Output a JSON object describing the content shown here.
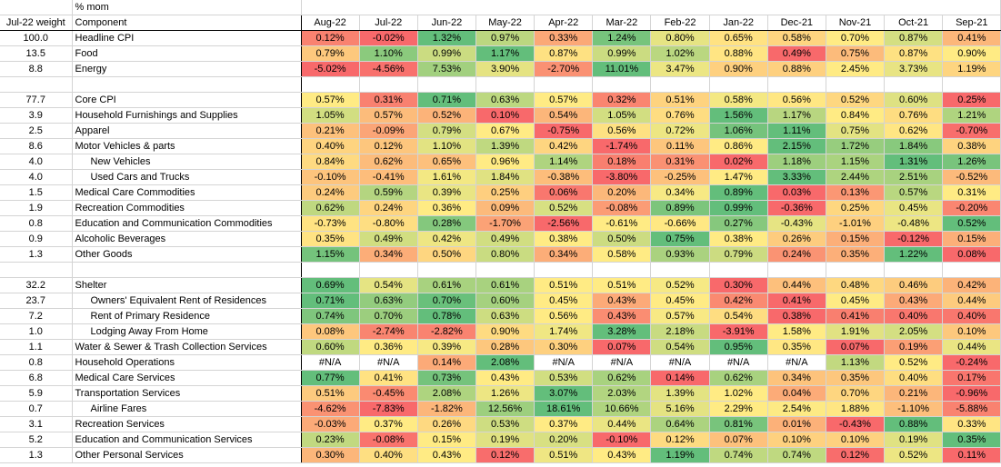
{
  "header": {
    "unit_label": "% mom",
    "weight_header": "Jul-22 weight",
    "component_header": "Component",
    "months": [
      "Aug-22",
      "Jul-22",
      "Jun-22",
      "May-22",
      "Apr-22",
      "Mar-22",
      "Feb-22",
      "Jan-22",
      "Dec-21",
      "Nov-21",
      "Oct-21",
      "Sep-21"
    ]
  },
  "rows": [
    {
      "w": "100.0",
      "c": "Headline CPI",
      "v": [
        "0.12%",
        "-0.02%",
        "1.32%",
        "0.97%",
        "0.33%",
        "1.24%",
        "0.80%",
        "0.65%",
        "0.58%",
        "0.70%",
        "0.87%",
        "0.41%"
      ]
    },
    {
      "w": "13.5",
      "c": "Food",
      "v": [
        "0.79%",
        "1.10%",
        "0.99%",
        "1.17%",
        "0.87%",
        "0.99%",
        "1.02%",
        "0.88%",
        "0.49%",
        "0.75%",
        "0.87%",
        "0.90%"
      ]
    },
    {
      "w": "8.8",
      "c": "Energy",
      "v": [
        "-5.02%",
        "-4.56%",
        "7.53%",
        "3.90%",
        "-2.70%",
        "11.01%",
        "3.47%",
        "0.90%",
        "0.88%",
        "2.45%",
        "3.73%",
        "1.19%"
      ]
    },
    {
      "blank": true
    },
    {
      "w": "77.7",
      "c": "Core CPI",
      "v": [
        "0.57%",
        "0.31%",
        "0.71%",
        "0.63%",
        "0.57%",
        "0.32%",
        "0.51%",
        "0.58%",
        "0.56%",
        "0.52%",
        "0.60%",
        "0.25%"
      ]
    },
    {
      "w": "3.9",
      "c": "Household Furnishings and Supplies",
      "v": [
        "1.05%",
        "0.57%",
        "0.52%",
        "0.10%",
        "0.54%",
        "1.05%",
        "0.76%",
        "1.56%",
        "1.17%",
        "0.84%",
        "0.76%",
        "1.21%"
      ]
    },
    {
      "w": "2.5",
      "c": "Apparel",
      "v": [
        "0.21%",
        "-0.09%",
        "0.79%",
        "0.67%",
        "-0.75%",
        "0.56%",
        "0.72%",
        "1.06%",
        "1.11%",
        "0.75%",
        "0.62%",
        "-0.70%"
      ]
    },
    {
      "w": "8.6",
      "c": "Motor Vehicles & parts",
      "v": [
        "0.40%",
        "0.12%",
        "1.10%",
        "1.39%",
        "0.42%",
        "-1.74%",
        "0.11%",
        "0.86%",
        "2.15%",
        "1.72%",
        "1.84%",
        "0.38%"
      ]
    },
    {
      "w": "4.0",
      "c": "New Vehicles",
      "indent": true,
      "v": [
        "0.84%",
        "0.62%",
        "0.65%",
        "0.96%",
        "1.14%",
        "0.18%",
        "0.31%",
        "0.02%",
        "1.18%",
        "1.15%",
        "1.31%",
        "1.26%"
      ]
    },
    {
      "w": "4.0",
      "c": "Used Cars and Trucks",
      "indent": true,
      "v": [
        "-0.10%",
        "-0.41%",
        "1.61%",
        "1.84%",
        "-0.38%",
        "-3.80%",
        "-0.25%",
        "1.47%",
        "3.33%",
        "2.44%",
        "2.51%",
        "-0.52%"
      ]
    },
    {
      "w": "1.5",
      "c": "Medical Care Commodities",
      "v": [
        "0.24%",
        "0.59%",
        "0.39%",
        "0.25%",
        "0.06%",
        "0.20%",
        "0.34%",
        "0.89%",
        "0.03%",
        "0.13%",
        "0.57%",
        "0.31%"
      ]
    },
    {
      "w": "1.9",
      "c": "Recreation Commodities",
      "v": [
        "0.62%",
        "0.24%",
        "0.36%",
        "0.09%",
        "0.52%",
        "-0.08%",
        "0.89%",
        "0.99%",
        "-0.36%",
        "0.25%",
        "0.45%",
        "-0.20%"
      ]
    },
    {
      "w": "0.8",
      "c": "Education and Communication Commodities",
      "v": [
        "-0.73%",
        "-0.80%",
        "0.28%",
        "-1.70%",
        "-2.56%",
        "-0.61%",
        "-0.66%",
        "0.27%",
        "-0.43%",
        "-1.01%",
        "-0.48%",
        "0.52%"
      ]
    },
    {
      "w": "0.9",
      "c": "Alcoholic Beverages",
      "v": [
        "0.35%",
        "0.49%",
        "0.42%",
        "0.49%",
        "0.38%",
        "0.50%",
        "0.75%",
        "0.38%",
        "0.26%",
        "0.15%",
        "-0.12%",
        "0.15%"
      ]
    },
    {
      "w": "1.3",
      "c": "Other Goods",
      "v": [
        "1.15%",
        "0.34%",
        "0.50%",
        "0.80%",
        "0.34%",
        "0.58%",
        "0.93%",
        "0.79%",
        "0.24%",
        "0.35%",
        "1.22%",
        "0.08%"
      ]
    },
    {
      "blank": true
    },
    {
      "w": "32.2",
      "c": "Shelter",
      "v": [
        "0.69%",
        "0.54%",
        "0.61%",
        "0.61%",
        "0.51%",
        "0.51%",
        "0.52%",
        "0.30%",
        "0.44%",
        "0.48%",
        "0.46%",
        "0.42%"
      ]
    },
    {
      "w": "23.7",
      "c": "Owners' Equivalent Rent of Residences",
      "indent": true,
      "v": [
        "0.71%",
        "0.63%",
        "0.70%",
        "0.60%",
        "0.45%",
        "0.43%",
        "0.45%",
        "0.42%",
        "0.41%",
        "0.45%",
        "0.43%",
        "0.44%"
      ]
    },
    {
      "w": "7.2",
      "c": "Rent of Primary Residence",
      "indent": true,
      "v": [
        "0.74%",
        "0.70%",
        "0.78%",
        "0.63%",
        "0.56%",
        "0.43%",
        "0.57%",
        "0.54%",
        "0.38%",
        "0.41%",
        "0.40%",
        "0.40%"
      ]
    },
    {
      "w": "1.0",
      "c": "Lodging Away From Home",
      "indent": true,
      "v": [
        "0.08%",
        "-2.74%",
        "-2.82%",
        "0.90%",
        "1.74%",
        "3.28%",
        "2.18%",
        "-3.91%",
        "1.58%",
        "1.91%",
        "2.05%",
        "0.10%"
      ]
    },
    {
      "w": "1.1",
      "c": "Water & Sewer & Trash Collection Services",
      "v": [
        "0.60%",
        "0.36%",
        "0.39%",
        "0.28%",
        "0.30%",
        "0.07%",
        "0.54%",
        "0.95%",
        "0.35%",
        "0.07%",
        "0.19%",
        "0.44%"
      ]
    },
    {
      "w": "0.8",
      "c": "Household Operations",
      "v": [
        "#N/A",
        "#N/A",
        "0.14%",
        "2.08%",
        "#N/A",
        "#N/A",
        "#N/A",
        "#N/A",
        "#N/A",
        "1.13%",
        "0.52%",
        "-0.24%"
      ]
    },
    {
      "w": "6.8",
      "c": "Medical Care Services",
      "v": [
        "0.77%",
        "0.41%",
        "0.73%",
        "0.43%",
        "0.53%",
        "0.62%",
        "0.14%",
        "0.62%",
        "0.34%",
        "0.35%",
        "0.40%",
        "0.17%"
      ]
    },
    {
      "w": "5.9",
      "c": "Transportation Services",
      "v": [
        "0.51%",
        "-0.45%",
        "2.08%",
        "1.26%",
        "3.07%",
        "2.03%",
        "1.39%",
        "1.02%",
        "0.04%",
        "0.70%",
        "0.21%",
        "-0.96%"
      ]
    },
    {
      "w": "0.7",
      "c": "Airline Fares",
      "indent": true,
      "v": [
        "-4.62%",
        "-7.83%",
        "-1.82%",
        "12.56%",
        "18.61%",
        "10.66%",
        "5.16%",
        "2.29%",
        "2.54%",
        "1.88%",
        "-1.10%",
        "-5.88%"
      ]
    },
    {
      "w": "3.1",
      "c": "Recreation Services",
      "v": [
        "-0.03%",
        "0.37%",
        "0.26%",
        "0.53%",
        "0.37%",
        "0.44%",
        "0.64%",
        "0.81%",
        "0.01%",
        "-0.43%",
        "0.88%",
        "0.33%"
      ]
    },
    {
      "w": "5.2",
      "c": "Education and Communication Services",
      "v": [
        "0.23%",
        "-0.08%",
        "0.15%",
        "0.19%",
        "0.20%",
        "-0.10%",
        "0.12%",
        "0.07%",
        "0.10%",
        "0.10%",
        "0.19%",
        "0.35%"
      ]
    },
    {
      "w": "1.3",
      "c": "Other Personal Services",
      "v": [
        "0.30%",
        "0.40%",
        "0.43%",
        "0.12%",
        "0.51%",
        "0.43%",
        "1.19%",
        "0.74%",
        "0.74%",
        "0.12%",
        "0.52%",
        "0.11%"
      ]
    }
  ],
  "colors": {
    "red": "#f8696b",
    "yellow": "#ffeb84",
    "green": "#63be7b",
    "na": "#ffffff"
  }
}
